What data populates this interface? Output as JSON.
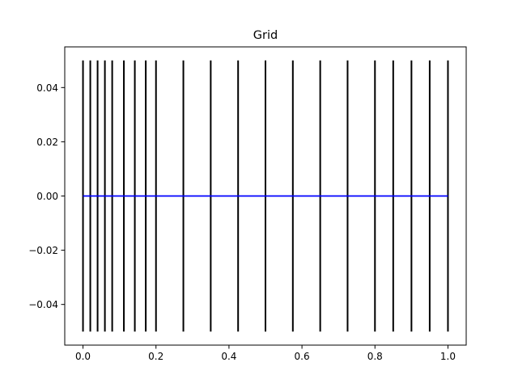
{
  "chart_data": {
    "type": "line",
    "title": "Grid",
    "xlabel": "",
    "ylabel": "",
    "xlim": [
      -0.05,
      1.05
    ],
    "ylim": [
      -0.055,
      0.055
    ],
    "grid": false,
    "x_ticks": [
      {
        "value": 0.0,
        "label": "0.0"
      },
      {
        "value": 0.2,
        "label": "0.2"
      },
      {
        "value": 0.4,
        "label": "0.4"
      },
      {
        "value": 0.6,
        "label": "0.6"
      },
      {
        "value": 0.8,
        "label": "0.8"
      },
      {
        "value": 1.0,
        "label": "1.0"
      }
    ],
    "y_ticks": [
      {
        "value": 0.04,
        "label": "0.04"
      },
      {
        "value": 0.02,
        "label": "0.02"
      },
      {
        "value": 0.0,
        "label": "0.00"
      },
      {
        "value": -0.02,
        "label": "−0.02"
      },
      {
        "value": -0.04,
        "label": "−0.04"
      }
    ],
    "grid_lines": {
      "color": "#000000",
      "y_range": [
        -0.05,
        0.05
      ],
      "x": [
        0.0,
        0.02,
        0.04,
        0.06,
        0.08,
        0.112,
        0.142,
        0.172,
        0.2,
        0.275,
        0.35,
        0.425,
        0.5,
        0.575,
        0.65,
        0.725,
        0.8,
        0.85,
        0.9,
        0.95,
        1.0
      ]
    },
    "series": [
      {
        "color": "#0000ff",
        "x": [
          0.0,
          1.0
        ],
        "y": [
          0.0,
          0.0
        ]
      }
    ]
  }
}
